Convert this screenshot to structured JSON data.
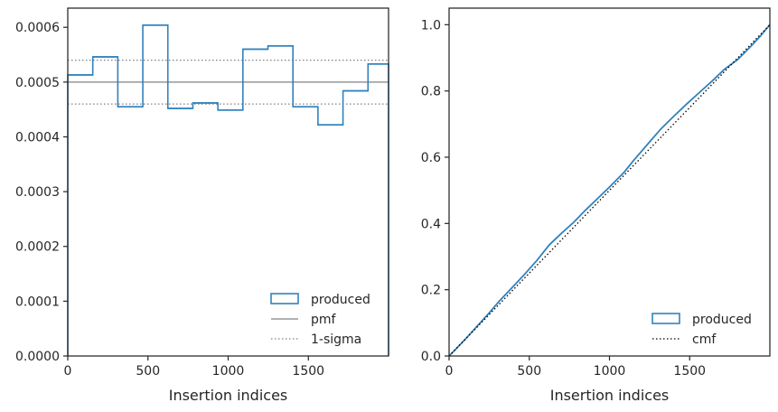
{
  "chart_data": [
    {
      "type": "step-histogram",
      "xlabel": "Insertion indices",
      "ylabel": "",
      "xlim": [
        0,
        2000
      ],
      "ylim": [
        0,
        0.000635
      ],
      "xticks": [
        0,
        500,
        1000,
        1500
      ],
      "xtick_labels": [
        "0",
        "500",
        "1000",
        "1500"
      ],
      "yticks": [
        0,
        0.0001,
        0.0002,
        0.0003,
        0.0004,
        0.0005,
        0.0006
      ],
      "ytick_labels": [
        "0.0000",
        "0.0001",
        "0.0002",
        "0.0003",
        "0.0004",
        "0.0005",
        "0.0006"
      ],
      "bin_edges": [
        0,
        156,
        312,
        468,
        624,
        780,
        936,
        1092,
        1248,
        1404,
        1560,
        1716,
        1872,
        2000
      ],
      "series": [
        {
          "name": "produced",
          "color": "#3182bd",
          "values": [
            0.000513,
            0.000546,
            0.000455,
            0.000604,
            0.000452,
            0.000462,
            0.000449,
            0.00056,
            0.000566,
            0.000455,
            0.000422,
            0.000484,
            0.000533
          ]
        }
      ],
      "hlines": [
        {
          "name": "pmf",
          "y": 0.0005,
          "style": "solid",
          "color": "#808080"
        },
        {
          "name": "1-sigma",
          "y": 0.00054,
          "style": "dotted",
          "color": "#808080"
        },
        {
          "name": "1-sigma",
          "y": 0.00046,
          "style": "dotted",
          "color": "#808080"
        }
      ],
      "legend": {
        "position": "lower-right",
        "entries": [
          {
            "label": "produced",
            "kind": "box",
            "color": "#3182bd"
          },
          {
            "label": "pmf",
            "kind": "solid",
            "color": "#808080"
          },
          {
            "label": "1-sigma",
            "kind": "dotted",
            "color": "#808080"
          }
        ]
      }
    },
    {
      "type": "line",
      "xlabel": "Insertion indices",
      "ylabel": "",
      "xlim": [
        0,
        2000
      ],
      "ylim": [
        0,
        1.05
      ],
      "xticks": [
        0,
        500,
        1000,
        1500
      ],
      "xtick_labels": [
        "0",
        "500",
        "1000",
        "1500"
      ],
      "yticks": [
        0,
        0.2,
        0.4,
        0.6,
        0.8,
        1.0
      ],
      "ytick_labels": [
        "0.0",
        "0.2",
        "0.4",
        "0.6",
        "0.8",
        "1.0"
      ],
      "series": [
        {
          "name": "produced",
          "color": "#3182bd",
          "x": [
            0,
            50,
            100,
            156,
            250,
            312,
            400,
            468,
            550,
            624,
            700,
            780,
            850,
            936,
            1000,
            1092,
            1150,
            1248,
            1320,
            1404,
            1480,
            1560,
            1640,
            1716,
            1800,
            1872,
            1940,
            2000
          ],
          "y": [
            0,
            0.025,
            0.05,
            0.08,
            0.13,
            0.165,
            0.21,
            0.245,
            0.29,
            0.335,
            0.37,
            0.405,
            0.44,
            0.48,
            0.51,
            0.555,
            0.59,
            0.645,
            0.685,
            0.725,
            0.76,
            0.795,
            0.83,
            0.865,
            0.895,
            0.93,
            0.965,
            1.0
          ]
        },
        {
          "name": "cmf",
          "color": "#000000",
          "style": "dotted",
          "x": [
            0,
            2000
          ],
          "y": [
            0,
            1.0
          ]
        }
      ],
      "legend": {
        "position": "lower-right",
        "entries": [
          {
            "label": "produced",
            "kind": "box",
            "color": "#3182bd"
          },
          {
            "label": "cmf",
            "kind": "dotted",
            "color": "#000000"
          }
        ]
      }
    }
  ]
}
